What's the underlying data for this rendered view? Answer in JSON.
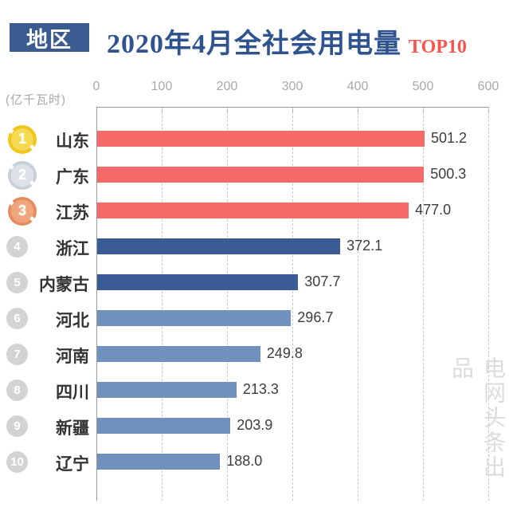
{
  "header": {
    "category_box": "地区",
    "title": "2020年4月全社会用电量",
    "top_badge": "TOP10"
  },
  "axis": {
    "unit_label": "(亿千瓦时)"
  },
  "watermark": "电网头条出品",
  "chart_data": {
    "type": "bar",
    "orientation": "horizontal",
    "title": "2020年4月全社会用电量 TOP10",
    "xlabel": "",
    "ylabel": "地区",
    "unit": "亿千瓦时",
    "categories": [
      "山东",
      "广东",
      "江苏",
      "浙江",
      "内蒙古",
      "河北",
      "河南",
      "四川",
      "新疆",
      "辽宁"
    ],
    "values": [
      501.2,
      500.3,
      477.0,
      372.1,
      307.7,
      296.7,
      249.8,
      213.3,
      203.9,
      188.0
    ],
    "value_labels": [
      "501.2",
      "500.3",
      "477.0",
      "372.1",
      "307.7",
      "296.7",
      "249.8",
      "213.3",
      "203.9",
      "188.0"
    ],
    "ranks": [
      "1",
      "2",
      "3",
      "4",
      "5",
      "6",
      "7",
      "8",
      "9",
      "10"
    ],
    "rank_styles": [
      "gold",
      "silver",
      "bronze",
      "gray",
      "gray",
      "gray",
      "gray",
      "gray",
      "gray",
      "gray"
    ],
    "bar_colors": [
      "#F76A6A",
      "#F76A6A",
      "#F76A6A",
      "#3A5B93",
      "#3A5B93",
      "#7090BE",
      "#7090BE",
      "#7090BE",
      "#7090BE",
      "#7090BE"
    ],
    "xlim": [
      0,
      600
    ],
    "x_ticks": [
      "0",
      "100",
      "200",
      "300",
      "400",
      "500",
      "600"
    ],
    "grid": "vertical-dashed",
    "legend": false
  },
  "colors": {
    "title": "#2F538E",
    "top10": "#F8544E",
    "header_box_bg": "#3B5C90",
    "bar_red": "#F76A6A",
    "bar_dark_blue": "#3A5B93",
    "bar_light_blue": "#7090BE",
    "axis_line": "#9A9A9A",
    "gridline": "#CBCBCB",
    "tick_label": "#A8A8A8",
    "value_label": "#3D3D3D",
    "category_label": "#333333",
    "watermark": "#DCDCDC"
  }
}
